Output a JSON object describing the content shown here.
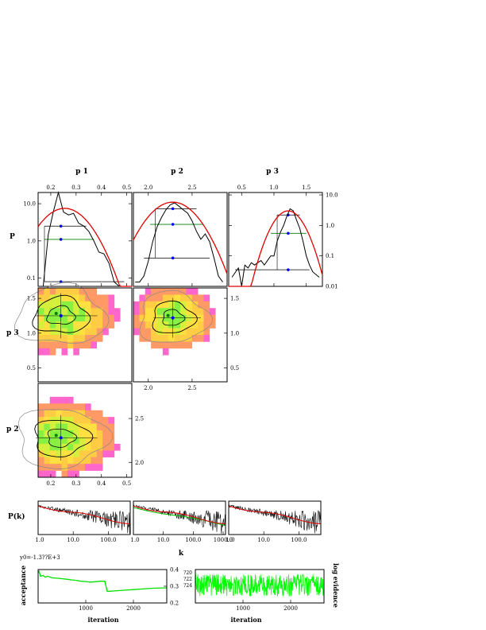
{
  "chart_data": [
    {
      "type": "line",
      "panel": "marginal-p1",
      "title": "p 1",
      "ylabel": "P",
      "xlim": [
        0.15,
        0.52
      ],
      "ylim_log": [
        0.06,
        20
      ],
      "yscale": "log",
      "x_ticks": [
        "0.2",
        "0.3",
        "0.4",
        "0.5"
      ],
      "y_ticks": [
        "0.1",
        "1.0",
        "10.0"
      ],
      "histogram": {
        "x": [
          0.15,
          0.17,
          0.19,
          0.21,
          0.23,
          0.25,
          0.27,
          0.29,
          0.31,
          0.33,
          0.35,
          0.37,
          0.39,
          0.41,
          0.43,
          0.45,
          0.47,
          0.49
        ],
        "y": [
          0.06,
          0.06,
          1.5,
          6,
          20,
          6,
          5,
          5.5,
          3,
          2.5,
          1.8,
          1,
          0.5,
          0.45,
          0.25,
          0.08,
          0.06,
          0.06
        ]
      },
      "gaussian": {
        "mean": 0.255,
        "sigma": 0.07,
        "peak": 7.5
      },
      "levels": [
        {
          "y": 2.5,
          "x": [
            0.175,
            0.34
          ],
          "color": "#000000"
        },
        {
          "y": 1.1,
          "x": [
            0.175,
            0.37
          ],
          "color": "#008000"
        },
        {
          "y": 0.08,
          "x": [
            0.175,
            0.49
          ],
          "color": "#000000"
        }
      ],
      "marker_x": 0.24
    },
    {
      "type": "line",
      "panel": "marginal-p2",
      "title": "p 2",
      "xlim": [
        1.83,
        2.9
      ],
      "ylim_log": [
        0.015,
        8
      ],
      "yscale": "log",
      "x_ticks": [
        "2.0",
        "2.5"
      ],
      "histogram": {
        "x": [
          1.85,
          1.9,
          1.95,
          2.0,
          2.05,
          2.1,
          2.15,
          2.2,
          2.25,
          2.3,
          2.35,
          2.4,
          2.45,
          2.5,
          2.55,
          2.6,
          2.65,
          2.7,
          2.75,
          2.8,
          2.85
        ],
        "y": [
          0.02,
          0.02,
          0.03,
          0.08,
          0.3,
          0.8,
          1.5,
          2.5,
          3.5,
          4,
          3.2,
          2.5,
          2,
          1.2,
          0.6,
          0.35,
          0.5,
          0.3,
          0.1,
          0.03,
          0.02
        ]
      },
      "gaussian": {
        "mean": 2.28,
        "sigma": 0.2,
        "peak": 4.2
      },
      "levels": [
        {
          "y": 2.7,
          "x": [
            2.08,
            2.55
          ],
          "color": "#000000"
        },
        {
          "y": 0.95,
          "x": [
            2.02,
            2.62
          ],
          "color": "#008000"
        },
        {
          "y": 0.1,
          "x": [
            1.95,
            2.7
          ],
          "color": "#000000"
        }
      ],
      "marker_x": 2.28
    },
    {
      "type": "line",
      "panel": "marginal-p3",
      "title": "p 3",
      "ylabel_right_ticks": [
        "0.01",
        "0.1",
        "1.0",
        "10.0"
      ],
      "xlim": [
        0.3,
        1.75
      ],
      "ylim_log": [
        0.01,
        12
      ],
      "yscale": "log",
      "x_ticks": [
        "0.5",
        "1.0",
        "1.5"
      ],
      "histogram": {
        "x": [
          0.35,
          0.45,
          0.5,
          0.55,
          0.6,
          0.65,
          0.7,
          0.75,
          0.8,
          0.85,
          0.9,
          0.95,
          1.0,
          1.05,
          1.1,
          1.15,
          1.2,
          1.25,
          1.3,
          1.35,
          1.4,
          1.45,
          1.5,
          1.55,
          1.6,
          1.7
        ],
        "y": [
          0.02,
          0.04,
          0.01,
          0.05,
          0.04,
          0.06,
          0.05,
          0.06,
          0.07,
          0.05,
          0.07,
          0.1,
          0.1,
          0.3,
          0.6,
          1,
          2,
          3.5,
          3,
          1.5,
          0.8,
          0.3,
          0.1,
          0.05,
          0.03,
          0.02
        ]
      },
      "gaussian": {
        "mean": 1.22,
        "sigma": 0.17,
        "peak": 3.0
      },
      "levels": [
        {
          "y": 2.2,
          "x": [
            1.05,
            1.4
          ],
          "color": "#000000"
        },
        {
          "y": 0.55,
          "x": [
            0.95,
            1.5
          ],
          "color": "#008000"
        },
        {
          "y": 0.035,
          "x": [
            0.4,
            1.55
          ],
          "color": "#000000"
        }
      ],
      "marker_x": 1.22
    },
    {
      "type": "heatmap",
      "panel": "joint-p1-p3",
      "xlabel": "",
      "ylabel": "p 3",
      "xlim": [
        0.15,
        0.52
      ],
      "ylim": [
        0.3,
        1.65
      ],
      "y_ticks": [
        "0.5",
        "1.0",
        "1.5"
      ],
      "peak": [
        0.24,
        1.25
      ],
      "spread": [
        0.09,
        0.25
      ]
    },
    {
      "type": "heatmap",
      "panel": "joint-p2-p3",
      "xlim": [
        1.83,
        2.9
      ],
      "ylim": [
        0.3,
        1.65
      ],
      "x_ticks": [
        "2.0",
        "2.5"
      ],
      "y_ticks_right": [
        "0.5",
        "1.0",
        "1.5"
      ],
      "peak": [
        2.28,
        1.22
      ],
      "spread": [
        0.2,
        0.22
      ]
    },
    {
      "type": "heatmap",
      "panel": "joint-p1-p2",
      "ylabel": "p 2",
      "xlim": [
        0.15,
        0.52
      ],
      "ylim": [
        1.83,
        2.9
      ],
      "x_ticks": [
        "0.2",
        "0.3",
        "0.4",
        "0.5"
      ],
      "y_ticks_right": [
        "2.0",
        "2.5"
      ],
      "peak": [
        0.24,
        2.28
      ],
      "spread": [
        0.09,
        0.2
      ]
    },
    {
      "type": "line",
      "panel": "power-spectra",
      "ylabel": "P(k)",
      "xlabel": "k",
      "xscale": "log",
      "panels": [
        {
          "x_ticks": [
            "1.0",
            "10.0",
            "100.0"
          ],
          "xlim": [
            1,
            420
          ]
        },
        {
          "x_ticks": [
            "1.0",
            "10.0",
            "100.0",
            "1000.0"
          ],
          "xlim": [
            1,
            1200
          ]
        },
        {
          "x_ticks": [
            "1.0",
            "10.0",
            "100.0"
          ],
          "xlim": [
            1,
            420
          ]
        }
      ],
      "series": [
        {
          "color": "#000000"
        },
        {
          "color": "#e00000"
        },
        {
          "color": "#00c000"
        }
      ]
    },
    {
      "type": "line",
      "panel": "acceptance-trace",
      "title": "y0=-1.3??E+3",
      "xlabel": "iteration",
      "ylabel": "acceptance",
      "xlim": [
        0,
        2700
      ],
      "ylim": [
        0.2,
        0.4
      ],
      "x_ticks": [
        "1000",
        "2000"
      ],
      "y_ticks": [
        "0.2",
        "0.3",
        "0.4"
      ],
      "series": [
        {
          "color": "#00e000",
          "x": [
            0,
            20,
            50,
            100,
            150,
            200,
            300,
            400,
            500,
            600,
            700,
            800,
            900,
            1000,
            1100,
            1200,
            1300,
            1400,
            1450,
            1500,
            1600,
            1800,
            2000,
            2200,
            2400,
            2600,
            2700
          ],
          "y": [
            0.38,
            0.39,
            0.36,
            0.365,
            0.355,
            0.36,
            0.35,
            0.348,
            0.345,
            0.342,
            0.338,
            0.335,
            0.33,
            0.328,
            0.325,
            0.327,
            0.33,
            0.33,
            0.27,
            0.27,
            0.272,
            0.276,
            0.28,
            0.284,
            0.288,
            0.29,
            0.29
          ]
        }
      ]
    },
    {
      "type": "line",
      "panel": "log-evidence-trace",
      "xlabel": "iteration",
      "ylabel": "log evidence",
      "xlim": [
        0,
        2700
      ],
      "x_ticks": [
        "1000",
        "2000"
      ],
      "y_ticks": [
        "?20",
        "?22",
        "?24"
      ],
      "series": [
        {
          "color": "#00ff00",
          "noise": true
        }
      ]
    }
  ]
}
